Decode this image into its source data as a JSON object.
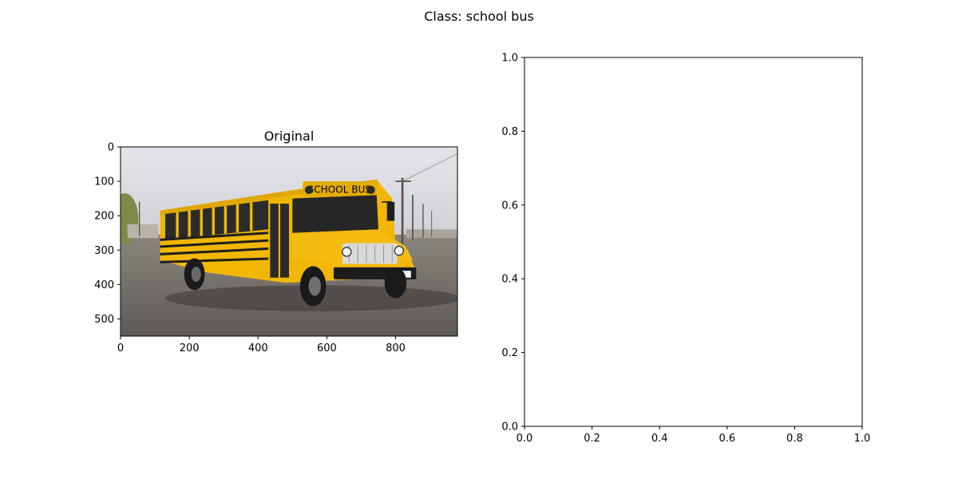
{
  "figure": {
    "suptitle": "Class: school bus"
  },
  "chart_data": [
    {
      "type": "image",
      "title": "Original",
      "xlim": [
        0,
        980
      ],
      "ylim": [
        550,
        0
      ],
      "xticks": [
        0,
        200,
        400,
        600,
        800
      ],
      "yticks": [
        0,
        100,
        200,
        300,
        400,
        500
      ],
      "xticklabels": [
        "0",
        "200",
        "400",
        "600",
        "800"
      ],
      "yticklabels": [
        "0",
        "100",
        "200",
        "300",
        "400",
        "500"
      ],
      "image_content": "yellow-school-bus-photo",
      "bus_sign": "SCHOOL BUS"
    },
    {
      "type": "empty",
      "title": "",
      "xlim": [
        0,
        1
      ],
      "ylim": [
        0,
        1
      ],
      "xticks": [
        0.0,
        0.2,
        0.4,
        0.6,
        0.8,
        1.0
      ],
      "yticks": [
        0.0,
        0.2,
        0.4,
        0.6,
        0.8,
        1.0
      ],
      "xticklabels": [
        "0.0",
        "0.2",
        "0.4",
        "0.6",
        "0.8",
        "1.0"
      ],
      "yticklabels": [
        "0.0",
        "0.2",
        "0.4",
        "0.6",
        "0.8",
        "1.0"
      ]
    }
  ],
  "colors": {
    "bus_yellow": "#f2b705",
    "bus_dark": "#1f1f1f",
    "sky": "#dcdde2",
    "road": "#6f6a66"
  }
}
